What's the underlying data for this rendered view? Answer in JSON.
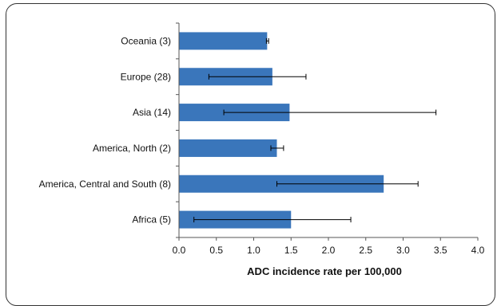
{
  "chart_data": {
    "type": "bar",
    "orientation": "horizontal",
    "categories": [
      "Oceania (3)",
      "Europe (28)",
      "Asia (14)",
      "America, North (2)",
      "America, Central and South (8)",
      "Africa (5)"
    ],
    "values": [
      1.18,
      1.25,
      1.48,
      1.31,
      2.74,
      1.5
    ],
    "error_low": [
      1.17,
      0.4,
      0.6,
      1.23,
      1.31,
      0.2
    ],
    "error_high": [
      1.2,
      1.7,
      3.44,
      1.4,
      3.2,
      2.3
    ],
    "xlabel": "ADC incidence rate per 100,000",
    "xlim": [
      0,
      4
    ],
    "xticks": [
      "0.0",
      "0.5",
      "1.0",
      "1.5",
      "2.0",
      "2.5",
      "3.0",
      "3.5",
      "4.0"
    ],
    "bar_color": "#3a76bb",
    "grid": false
  }
}
